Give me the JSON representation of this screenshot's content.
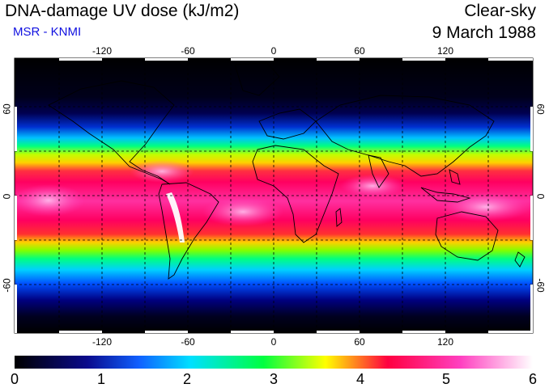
{
  "header": {
    "title": "DNA-damage UV dose (kJ/m2)",
    "subtitle": "MSR - KNMI",
    "condition": "Clear-sky",
    "date": "9 March 1988"
  },
  "map": {
    "longitude_labels": [
      "-120",
      "-60",
      "0",
      "60",
      "120"
    ],
    "latitude_labels": [
      "60",
      "0",
      "-60"
    ],
    "gridlines": true,
    "projection": "equirectangular",
    "colors": {
      "background": "#000020",
      "coastline": "#000000"
    }
  },
  "colorbar": {
    "min": 0,
    "max": 6,
    "tick_labels": [
      "0",
      "1",
      "2",
      "3",
      "4",
      "5",
      "6"
    ],
    "stops": [
      "#000000",
      "#0a0a8c",
      "#1060ff",
      "#00e0ff",
      "#00ff40",
      "#ffff00",
      "#ff0040",
      "#ff40c0",
      "#ffffff"
    ]
  }
}
